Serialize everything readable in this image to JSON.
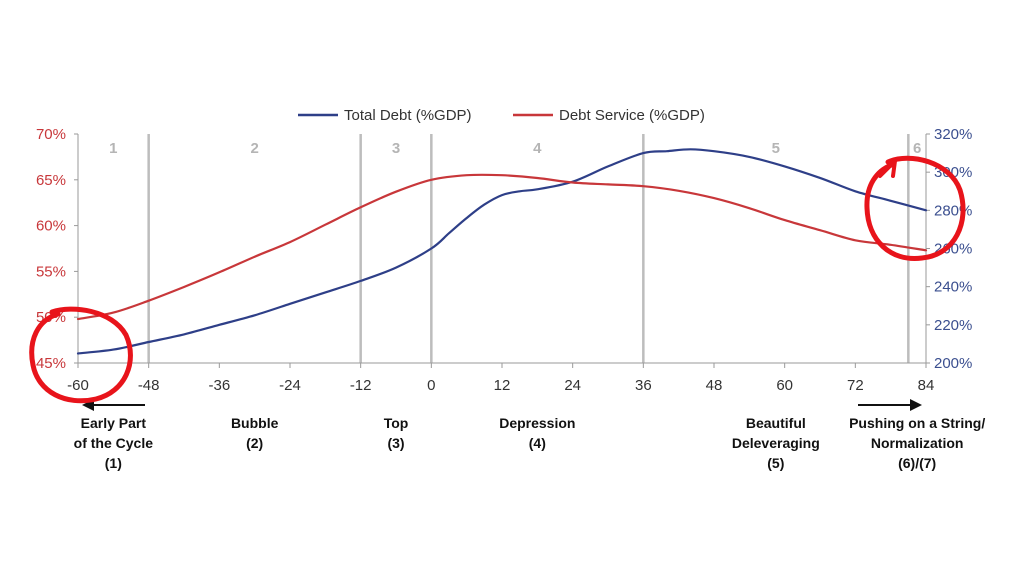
{
  "chart_data": {
    "type": "line",
    "legend": {
      "placement": "top-center",
      "entries": [
        {
          "name": "Total Debt (%GDP)",
          "color": "#2e3f88"
        },
        {
          "name": "Debt Service (%GDP)",
          "color": "#c8373a"
        }
      ]
    },
    "x_axis": {
      "range": [
        -60,
        84
      ],
      "ticks": [
        "-60",
        "-48",
        "-36",
        "-24",
        "-12",
        "0",
        "12",
        "24",
        "36",
        "48",
        "60",
        "72",
        "84"
      ]
    },
    "y_left": {
      "range": [
        45,
        70
      ],
      "ticks": [
        "45%",
        "50%",
        "55%",
        "60%",
        "65%",
        "70%"
      ],
      "color": "#c8373a"
    },
    "y_right": {
      "range": [
        200,
        320
      ],
      "ticks": [
        "200%",
        "220%",
        "240%",
        "260%",
        "280%",
        "300%",
        "320%"
      ],
      "color": "#3b4f8f"
    },
    "series": [
      {
        "name": "Total Debt (%GDP)",
        "axis": "right",
        "color": "#2e3f88",
        "x": [
          -60,
          -54,
          -48,
          -42,
          -36,
          -30,
          -24,
          -18,
          -12,
          -6,
          0,
          3,
          6,
          9,
          12,
          15,
          18,
          24,
          30,
          36,
          40,
          44,
          48,
          54,
          60,
          66,
          72,
          78,
          84
        ],
        "y": [
          205,
          207,
          211,
          215,
          220,
          225,
          231,
          237,
          243,
          250,
          260,
          268,
          276,
          283,
          288,
          290,
          291,
          295,
          303,
          310,
          311,
          312,
          311,
          308,
          303,
          297,
          290,
          285,
          280
        ]
      },
      {
        "name": "Debt Service (%GDP)",
        "axis": "left",
        "color": "#c8373a",
        "x": [
          -60,
          -54,
          -48,
          -42,
          -36,
          -30,
          -24,
          -18,
          -12,
          -6,
          0,
          6,
          12,
          18,
          24,
          30,
          36,
          42,
          48,
          54,
          60,
          66,
          72,
          78,
          84
        ],
        "y": [
          49.8,
          50.5,
          51.8,
          53.3,
          54.9,
          56.6,
          58.2,
          60.1,
          62.0,
          63.7,
          65.0,
          65.5,
          65.5,
          65.2,
          64.7,
          64.5,
          64.3,
          63.8,
          63.0,
          61.9,
          60.6,
          59.5,
          58.4,
          57.9,
          57.3
        ]
      }
    ],
    "phases": [
      {
        "number": "1",
        "start": -60,
        "end": -48
      },
      {
        "number": "2",
        "start": -48,
        "end": -12
      },
      {
        "number": "3",
        "start": -12,
        "end": 0
      },
      {
        "number": "4",
        "start": 0,
        "end": 36
      },
      {
        "number": "5",
        "start": 36,
        "end": 81
      },
      {
        "number": "6",
        "start": 81,
        "end": 84
      }
    ],
    "phase_labels": [
      {
        "lines": [
          "Early Part",
          "of the Cycle",
          "(1)"
        ],
        "x": -54,
        "arrow": "left"
      },
      {
        "lines": [
          "Bubble",
          "(2)"
        ],
        "x": -30
      },
      {
        "lines": [
          "Top",
          "(3)"
        ],
        "x": -6
      },
      {
        "lines": [
          "Depression",
          "(4)"
        ],
        "x": 18
      },
      {
        "lines": [
          "Beautiful",
          "Deleveraging",
          "(5)"
        ],
        "x": 58.5
      },
      {
        "lines": [
          "Pushing on a String/",
          "Normalization",
          "(6)/(7)"
        ],
        "x": 82.5,
        "arrow": "right"
      }
    ],
    "annotations": [
      {
        "type": "circle",
        "color": "#e8141b",
        "note": "hand-drawn circle around start of cycle"
      },
      {
        "type": "circle",
        "color": "#e8141b",
        "note": "hand-drawn circle around end of cycle"
      }
    ]
  }
}
